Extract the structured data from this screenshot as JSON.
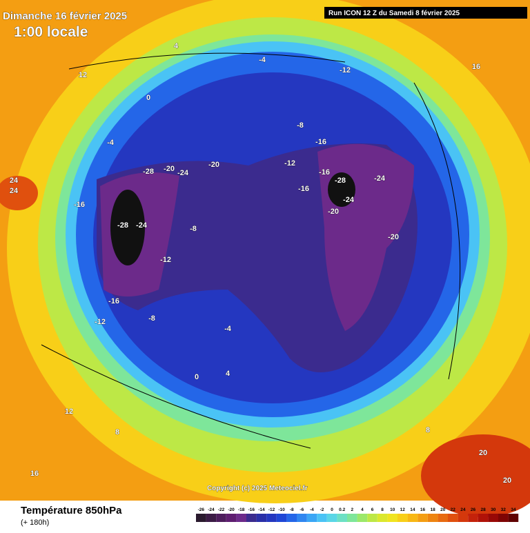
{
  "header": {
    "title": "Dimanche 16 février 2025",
    "time": "1:00 locale",
    "run": "Run ICON 12 Z du Samedi 8 février 2025"
  },
  "copyright": "Copyright (c) 2025 Meteociel.fr",
  "footer": {
    "parameter": "Température 850hPa",
    "lead": "(+ 180h)"
  },
  "colorbar": {
    "ticks": [
      -26,
      -24,
      -22,
      -20,
      -18,
      -16,
      -14,
      -12,
      -10,
      -8,
      -6,
      -4,
      -2,
      0,
      0.2,
      2,
      4,
      6,
      8,
      10,
      12,
      14,
      16,
      18,
      20,
      22,
      24,
      26,
      28,
      30,
      32,
      34
    ],
    "colors": [
      "#2a1a2e",
      "#3b1b45",
      "#4d1c5c",
      "#5e1d70",
      "#6c2a8a",
      "#3b2b8e",
      "#2a2fa8",
      "#2437c0",
      "#1f47d6",
      "#2466e8",
      "#2f86f0",
      "#3aa6f5",
      "#4ac3f5",
      "#5ad6e6",
      "#6ce0c4",
      "#7ee69a",
      "#9be86a",
      "#bde846",
      "#dbe82e",
      "#f0e420",
      "#f8cf18",
      "#f8b814",
      "#f49e12",
      "#ee8410",
      "#e86a10",
      "#e0500e",
      "#d4380c",
      "#c4220a",
      "#b01208",
      "#980806",
      "#7e0404",
      "#600202"
    ]
  },
  "map_labels": [
    -28,
    -24,
    -28,
    -20,
    -20,
    -24,
    -16,
    -12,
    -8,
    -4,
    -16,
    -12,
    -8,
    -4,
    0,
    4,
    8,
    12,
    16,
    20,
    24,
    -16,
    -12,
    -8,
    -4,
    0,
    4,
    8,
    12,
    16,
    20,
    24,
    -20,
    -16,
    -12,
    -24,
    -28,
    -24,
    -20,
    -16
  ]
}
